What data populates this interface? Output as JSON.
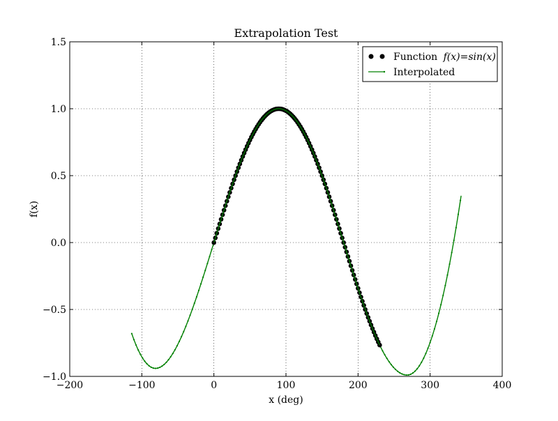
{
  "chart_data": {
    "type": "scatter",
    "title": "Extrapolation Test",
    "xlabel": "x (deg)",
    "ylabel": "f(x)",
    "xlim": [
      -200,
      400
    ],
    "ylim": [
      -1.0,
      1.5
    ],
    "xticks": [
      -200,
      -100,
      0,
      100,
      200,
      300,
      400
    ],
    "yticks": [
      -1.0,
      -0.5,
      0.0,
      0.5,
      1.0,
      1.5
    ],
    "xtick_labels": [
      "−200",
      "−100",
      "0",
      "100",
      "200",
      "300",
      "400"
    ],
    "ytick_labels": [
      "−1.0",
      "−0.5",
      "0.0",
      "0.5",
      "1.0",
      "1.5"
    ],
    "grid": true,
    "legend_position": "top-right",
    "series": [
      {
        "name": "Function",
        "name_math": "f(x)=sin(x)",
        "kind": "scatter",
        "color": "#000000",
        "formula": "sin(x deg)",
        "x_range": [
          0,
          230
        ],
        "x_step": 2
      },
      {
        "name": "Interpolated",
        "kind": "line",
        "color": "#008000",
        "x_range": [
          -114,
          343
        ],
        "x_step": 3,
        "key_points": [
          {
            "x": -114,
            "y": -0.68
          },
          {
            "x": -81,
            "y": -0.94
          },
          {
            "x": 0,
            "y": 0.0
          },
          {
            "x": 90,
            "y": 1.0
          },
          {
            "x": 230,
            "y": -0.75
          },
          {
            "x": 268,
            "y": -0.99
          },
          {
            "x": 343,
            "y": 0.35
          }
        ]
      }
    ]
  }
}
